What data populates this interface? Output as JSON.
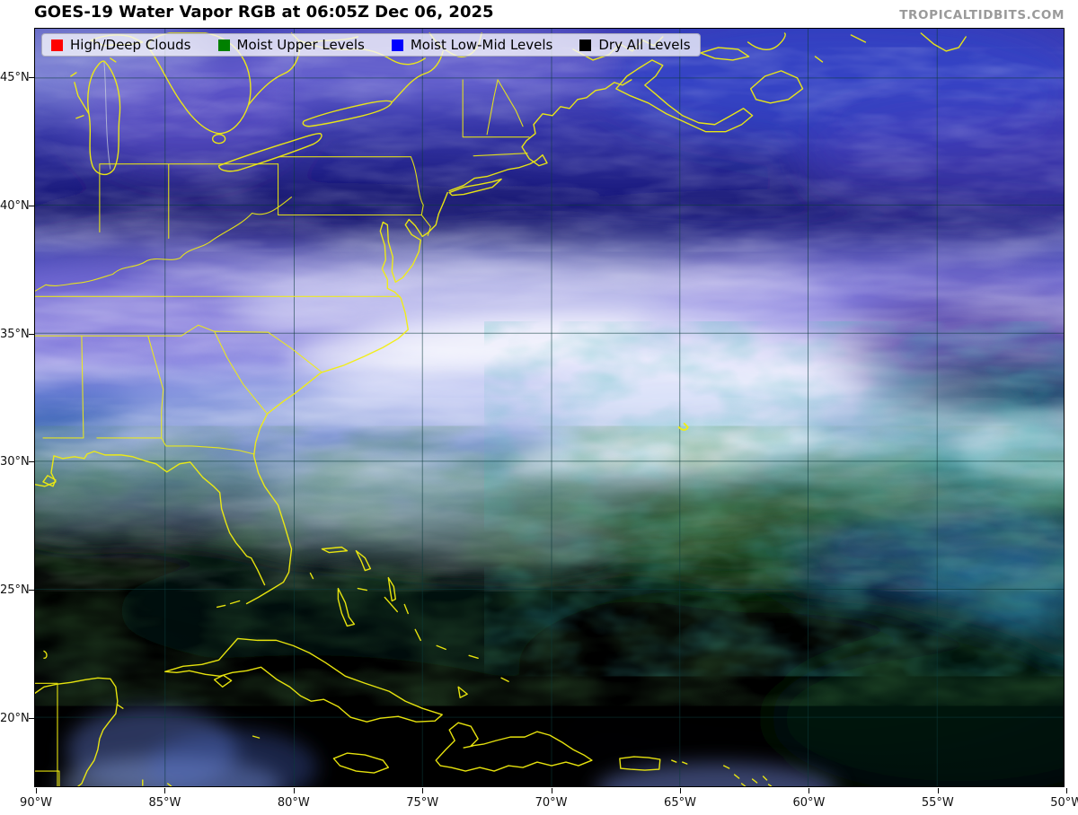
{
  "header": {
    "title": "GOES-19 Water Vapor RGB at 06:05Z Dec 06, 2025",
    "watermark": "TROPICALTIDBITS.COM"
  },
  "legend": {
    "items": [
      {
        "label": "High/Deep Clouds",
        "color": "#ff0000"
      },
      {
        "label": "Moist Upper Levels",
        "color": "#008000"
      },
      {
        "label": "Moist Low-Mid Levels",
        "color": "#0000ff"
      },
      {
        "label": "Dry All Levels",
        "color": "#000000"
      }
    ]
  },
  "map": {
    "lat_tick_labels": [
      "45°N",
      "40°N",
      "35°N",
      "30°N",
      "25°N",
      "20°N"
    ],
    "lon_tick_labels": [
      "90°W",
      "85°W",
      "80°W",
      "75°W",
      "70°W",
      "65°W",
      "60°W",
      "55°W",
      "50°W"
    ],
    "colors": {
      "coastline_yellow": "#f2ee0e",
      "gridline": "#0b3b3b",
      "moist_blue": "#3a3ab2",
      "cloud_white": "#eef2ff",
      "midlevel_purple": "#7a68d4",
      "upper_teal": "#0e6a66",
      "dry_green": "#1d4518",
      "dry_black": "#000002"
    }
  }
}
